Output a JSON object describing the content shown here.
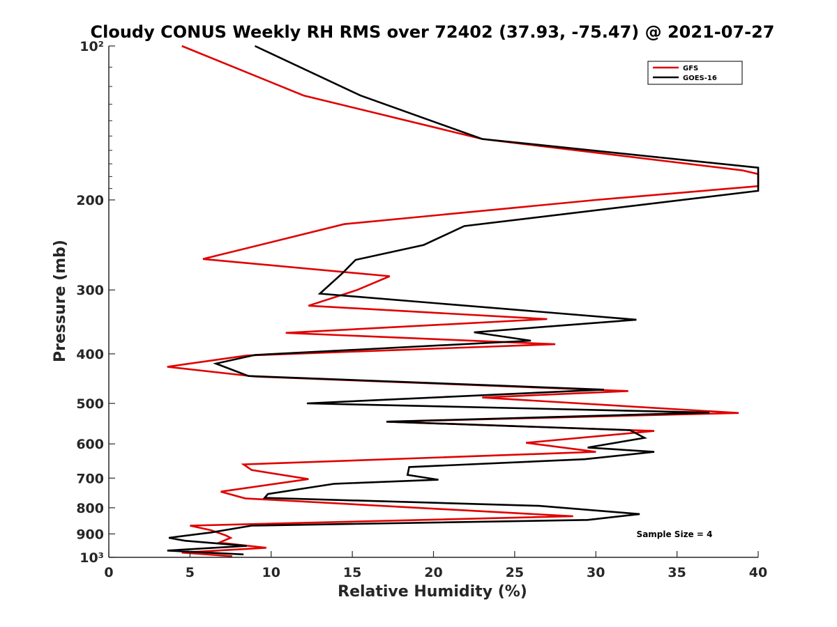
{
  "chart_data": {
    "type": "line",
    "title": "Cloudy CONUS Weekly RH RMS over 72402 (37.93, -75.47) @ 2021-07-27",
    "xlabel": "Relative Humidity (%)",
    "ylabel": "Pressure (mb)",
    "xlim": [
      0,
      40
    ],
    "ylim": [
      100,
      1000
    ],
    "y_scale": "log",
    "y_reversed": true,
    "xticks": [
      0,
      5,
      10,
      15,
      20,
      25,
      30,
      35,
      40
    ],
    "yticks": [
      100,
      200,
      300,
      400,
      500,
      600,
      700,
      800,
      900,
      1000
    ],
    "ytick_labels": [
      "10²",
      "200",
      "300",
      "400",
      "500",
      "600",
      "700",
      "800",
      "900",
      "10³"
    ],
    "xtick_labels": [
      "0",
      "5",
      "10",
      "15",
      "20",
      "25",
      "30",
      "35",
      "40"
    ],
    "grid": false,
    "legend_position": "top-right",
    "annotation": "Sample Size = 4",
    "series": [
      {
        "name": "GFS",
        "color": "#e00000",
        "points": [
          [
            4.5,
            100
          ],
          [
            12,
            125
          ],
          [
            23,
            152
          ],
          [
            39,
            175
          ],
          [
            40,
            178
          ],
          [
            40,
            188
          ],
          [
            30,
            200
          ],
          [
            14.5,
            223
          ],
          [
            5.8,
            261
          ],
          [
            17.3,
            282
          ],
          [
            15.3,
            300
          ],
          [
            12.3,
            322
          ],
          [
            27,
            342
          ],
          [
            10.9,
            364
          ],
          [
            27.5,
            383
          ],
          [
            8.5,
            403
          ],
          [
            3.6,
            424
          ],
          [
            9,
            443
          ],
          [
            32,
            473
          ],
          [
            23,
            487
          ],
          [
            38.8,
            522
          ],
          [
            17.1,
            543
          ],
          [
            33.6,
            566
          ],
          [
            25.7,
            597
          ],
          [
            30,
            622
          ],
          [
            8.3,
            658
          ],
          [
            8.8,
            675
          ],
          [
            12.3,
            703
          ],
          [
            6.9,
            744
          ],
          [
            8.4,
            767
          ],
          [
            28.6,
            831
          ],
          [
            5,
            867
          ],
          [
            6.3,
            885
          ],
          [
            7.2,
            906
          ],
          [
            7.5,
            916
          ],
          [
            6.8,
            936
          ],
          [
            9.7,
            958
          ],
          [
            4.5,
            979
          ],
          [
            7.6,
            995
          ]
        ]
      },
      {
        "name": "GOES-16",
        "color": "#000000",
        "points": [
          [
            9,
            100
          ],
          [
            15.5,
            125
          ],
          [
            23,
            152
          ],
          [
            40,
            173
          ],
          [
            40,
            192
          ],
          [
            21.9,
            225
          ],
          [
            19.4,
            245
          ],
          [
            15.2,
            262
          ],
          [
            14.4,
            278
          ],
          [
            13,
            305
          ],
          [
            32.5,
            343
          ],
          [
            22.5,
            363
          ],
          [
            26,
            377
          ],
          [
            9,
            402
          ],
          [
            6.6,
            418
          ],
          [
            8.6,
            442
          ],
          [
            30.5,
            470
          ],
          [
            12.2,
            500
          ],
          [
            37,
            521
          ],
          [
            17.1,
            543
          ],
          [
            32.1,
            564
          ],
          [
            33,
            584
          ],
          [
            29.5,
            610
          ],
          [
            33.6,
            622
          ],
          [
            29.3,
            643
          ],
          [
            18.5,
            666
          ],
          [
            18.4,
            690
          ],
          [
            20.3,
            705
          ],
          [
            13.9,
            718
          ],
          [
            9.8,
            752
          ],
          [
            9.6,
            765
          ],
          [
            26.5,
            793
          ],
          [
            32.7,
            823
          ],
          [
            29.5,
            845
          ],
          [
            8.8,
            867
          ],
          [
            6.3,
            894
          ],
          [
            3.7,
            916
          ],
          [
            4.7,
            928
          ],
          [
            8.5,
            950
          ],
          [
            3.6,
            970
          ],
          [
            8.3,
            987
          ]
        ]
      }
    ]
  }
}
